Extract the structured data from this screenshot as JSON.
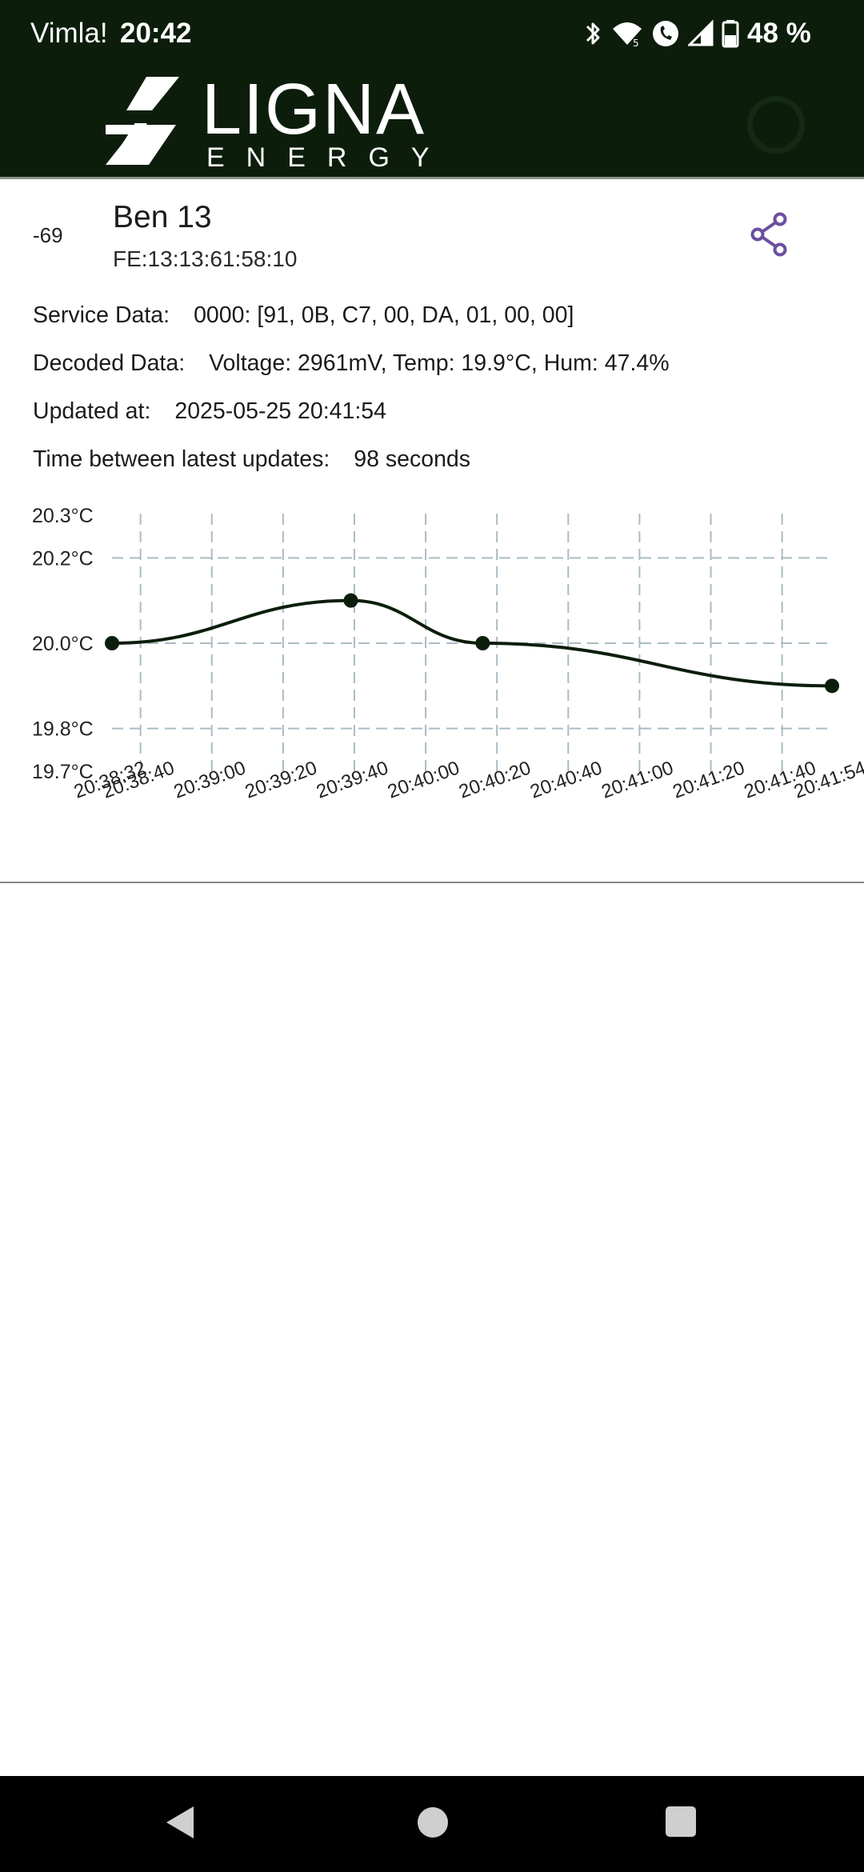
{
  "status_bar": {
    "carrier": "Vimla!",
    "time": "20:42",
    "battery_percent": "48 %",
    "icons": [
      "bluetooth-icon",
      "wifi-icon",
      "wifi-calling-icon",
      "cell-signal-icon",
      "battery-icon"
    ]
  },
  "app_bar": {
    "logo_word": "LIGNA",
    "logo_sub": "ENERGY",
    "background_color": "#0c1e0b"
  },
  "device": {
    "rssi": "-69",
    "name": "Ben 13",
    "mac": "FE:13:13:61:58:10",
    "share_icon": "share-icon",
    "accent_color": "#6b4fa0"
  },
  "details": {
    "service_label": "Service Data:",
    "service_value": "0000: [91, 0B, C7, 00, DA, 01, 00, 00]",
    "decoded_label": "Decoded Data:",
    "decoded_value": "Voltage: 2961mV, Temp: 19.9°C, Hum: 47.4%",
    "updated_label": "Updated at:",
    "updated_value": "2025-05-25 20:41:54",
    "interval_label": "Time between latest updates:",
    "interval_value": "98 seconds"
  },
  "chart_data": {
    "type": "line",
    "title": "",
    "xlabel": "",
    "ylabel": "",
    "unit": "°C",
    "ylim": [
      19.7,
      20.3
    ],
    "xlim": [
      "20:38:32",
      "20:41:54"
    ],
    "y_tick_labels": [
      "20.3°C",
      "20.2°C",
      "20.0°C",
      "19.8°C",
      "19.7°C"
    ],
    "y_tick_values": [
      20.3,
      20.2,
      20.0,
      19.8,
      19.7
    ],
    "x_tick_labels": [
      "20:38:32",
      "20:38:40",
      "20:39:00",
      "20:39:20",
      "20:39:40",
      "20:40:00",
      "20:40:20",
      "20:40:40",
      "20:41:00",
      "20:41:20",
      "20:41:40",
      "20:41:54"
    ],
    "grid": true,
    "line_color": "#0c1e0b",
    "grid_color": "#a9bcc4",
    "series": [
      {
        "x": [
          "20:38:32",
          "20:39:39",
          "20:40:16",
          "20:41:54"
        ],
        "y": [
          20.0,
          20.1,
          20.0,
          19.9
        ]
      }
    ]
  }
}
